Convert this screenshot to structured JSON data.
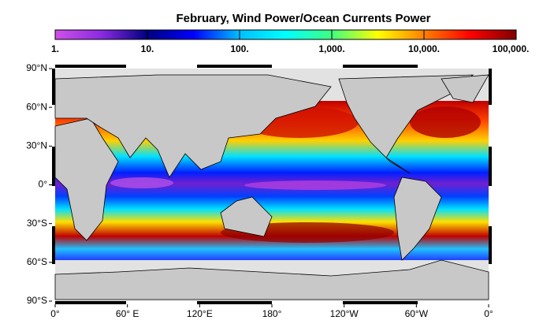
{
  "title": "February, Wind Power/Ocean Currents Power",
  "colorbar": {
    "scale": "log",
    "lim": [
      1,
      100000
    ],
    "ticks": [
      {
        "value": 1,
        "label": "1."
      },
      {
        "value": 10,
        "label": "10."
      },
      {
        "value": 100,
        "label": "100."
      },
      {
        "value": 1000,
        "label": "1,000."
      },
      {
        "value": 10000,
        "label": "10,000."
      },
      {
        "value": 100000,
        "label": "100,000."
      }
    ],
    "colors": [
      "#d050e8",
      "#8a2be2",
      "#000080",
      "#0000ff",
      "#00bfff",
      "#00ffff",
      "#40ff80",
      "#ffff00",
      "#ff8000",
      "#ff0000",
      "#800000"
    ]
  },
  "map": {
    "lonlim": [
      0,
      360
    ],
    "latlim": [
      -90,
      90
    ],
    "lat_ticks": [
      {
        "value": 90,
        "label": "90°N"
      },
      {
        "value": 60,
        "label": "60°N"
      },
      {
        "value": 30,
        "label": "30°N"
      },
      {
        "value": 0,
        "label": "0°"
      },
      {
        "value": -30,
        "label": "30°S"
      },
      {
        "value": -60,
        "label": "60°S"
      },
      {
        "value": -90,
        "label": "90°S"
      }
    ],
    "lon_ticks": [
      {
        "value": 0,
        "label": "0°"
      },
      {
        "value": 60,
        "label": "60° E"
      },
      {
        "value": 120,
        "label": "120°E"
      },
      {
        "value": 180,
        "label": "180°"
      },
      {
        "value": 240,
        "label": "120°W"
      },
      {
        "value": 300,
        "label": "60°W"
      },
      {
        "value": 360,
        "label": "0°"
      }
    ]
  }
}
